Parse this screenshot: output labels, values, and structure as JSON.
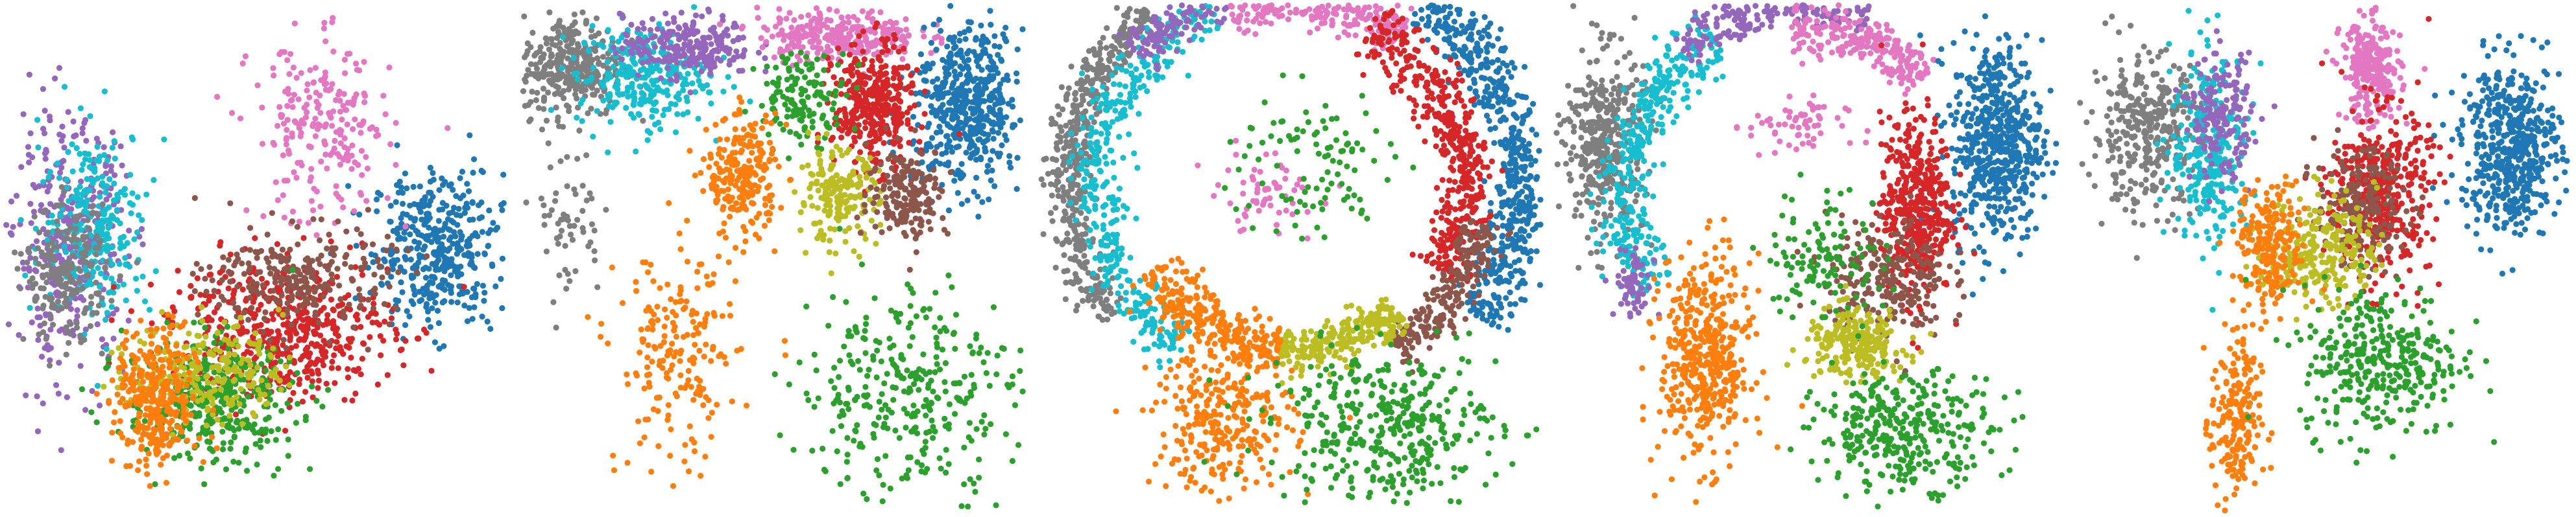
{
  "figure": {
    "background": "#ffffff"
  },
  "palette": {
    "blue": "#1f77b4",
    "orange": "#ff7f0e",
    "green": "#2ca02c",
    "red": "#d62728",
    "purple": "#9467bd",
    "brown": "#8c564b",
    "pink": "#e377c2",
    "gray": "#7f7f7f",
    "olive": "#bcbd22",
    "cyan": "#17becf"
  },
  "chart_data": [
    {
      "type": "scatter",
      "title": "",
      "xlabel": "",
      "ylabel": "",
      "axes_visible": false,
      "grid": false,
      "legend": "none",
      "xlim": [
        0,
        100
      ],
      "ylim": [
        0,
        100
      ],
      "clusters": [
        {
          "color": "blue",
          "regions": [
            {
              "kind": "blob",
              "cx": 86,
              "cy": 52,
              "rx": 13,
              "ry": 15,
              "n": 420
            }
          ]
        },
        {
          "color": "purple",
          "regions": [
            {
              "kind": "blob",
              "cx": 13,
              "cy": 52,
              "rx": 11,
              "ry": 24,
              "n": 380
            }
          ]
        },
        {
          "color": "cyan",
          "regions": [
            {
              "kind": "blob",
              "cx": 18,
              "cy": 57,
              "rx": 11,
              "ry": 19,
              "n": 260
            }
          ]
        },
        {
          "color": "gray",
          "regions": [
            {
              "kind": "blob",
              "cx": 12,
              "cy": 47,
              "rx": 8,
              "ry": 13,
              "n": 200
            }
          ]
        },
        {
          "color": "pink",
          "regions": [
            {
              "kind": "blob",
              "cx": 63,
              "cy": 75,
              "rx": 14,
              "ry": 18,
              "n": 230
            }
          ]
        },
        {
          "color": "red",
          "regions": [
            {
              "kind": "blob",
              "cx": 55,
              "cy": 36,
              "rx": 22,
              "ry": 14,
              "n": 560
            }
          ]
        },
        {
          "color": "brown",
          "regions": [
            {
              "kind": "blob",
              "cx": 59,
              "cy": 46,
              "rx": 18,
              "ry": 10,
              "n": 260
            }
          ]
        },
        {
          "color": "green",
          "regions": [
            {
              "kind": "blob",
              "cx": 41,
              "cy": 22,
              "rx": 17,
              "ry": 12,
              "n": 380
            }
          ]
        },
        {
          "color": "olive",
          "regions": [
            {
              "kind": "blob",
              "cx": 40,
              "cy": 28,
              "rx": 15,
              "ry": 10,
              "n": 240
            }
          ]
        },
        {
          "color": "orange",
          "regions": [
            {
              "kind": "blob",
              "cx": 30,
              "cy": 22,
              "rx": 8,
              "ry": 14,
              "n": 340
            }
          ]
        }
      ]
    },
    {
      "type": "scatter",
      "title": "",
      "xlabel": "",
      "ylabel": "",
      "axes_visible": false,
      "grid": false,
      "legend": "none",
      "xlim": [
        0,
        100
      ],
      "ylim": [
        0,
        100
      ],
      "clusters": [
        {
          "color": "gray",
          "regions": [
            {
              "kind": "blob",
              "cx": 10,
              "cy": 88,
              "rx": 10,
              "ry": 10,
              "n": 330
            },
            {
              "kind": "blob",
              "cx": 9,
              "cy": 58,
              "rx": 7,
              "ry": 16,
              "n": 60
            }
          ]
        },
        {
          "color": "cyan",
          "regions": [
            {
              "kind": "blob",
              "cx": 24,
              "cy": 86,
              "rx": 13,
              "ry": 10,
              "n": 290
            }
          ]
        },
        {
          "color": "purple",
          "regions": [
            {
              "kind": "blob",
              "cx": 33,
              "cy": 92,
              "rx": 13,
              "ry": 6,
              "n": 240
            }
          ]
        },
        {
          "color": "pink",
          "regions": [
            {
              "kind": "blob",
              "cx": 63,
              "cy": 94,
              "rx": 16,
              "ry": 5,
              "n": 280
            }
          ]
        },
        {
          "color": "blue",
          "regions": [
            {
              "kind": "blob",
              "cx": 89,
              "cy": 80,
              "rx": 11,
              "ry": 16,
              "n": 520
            }
          ]
        },
        {
          "color": "red",
          "regions": [
            {
              "kind": "blob",
              "cx": 70,
              "cy": 80,
              "rx": 8,
              "ry": 12,
              "n": 380
            }
          ]
        },
        {
          "color": "green",
          "regions": [
            {
              "kind": "blob",
              "cx": 56,
              "cy": 82,
              "rx": 9,
              "ry": 9,
              "n": 140
            },
            {
              "kind": "blob",
              "cx": 77,
              "cy": 24,
              "rx": 22,
              "ry": 21,
              "n": 330
            }
          ]
        },
        {
          "color": "olive",
          "regions": [
            {
              "kind": "blob",
              "cx": 63,
              "cy": 62,
              "rx": 8,
              "ry": 9,
              "n": 190
            }
          ]
        },
        {
          "color": "brown",
          "regions": [
            {
              "kind": "blob",
              "cx": 77,
              "cy": 63,
              "rx": 8,
              "ry": 9,
              "n": 190
            }
          ]
        },
        {
          "color": "orange",
          "regions": [
            {
              "kind": "blob",
              "cx": 44,
              "cy": 66,
              "rx": 7,
              "ry": 12,
              "n": 240
            },
            {
              "kind": "blob",
              "cx": 31,
              "cy": 30,
              "rx": 12,
              "ry": 22,
              "n": 200
            }
          ]
        }
      ]
    },
    {
      "type": "scatter",
      "title": "",
      "xlabel": "",
      "ylabel": "",
      "axes_visible": false,
      "grid": false,
      "legend": "none",
      "xlim": [
        0,
        100
      ],
      "ylim": [
        0,
        100
      ],
      "clusters": [
        {
          "color": "gray",
          "regions": [
            {
              "kind": "arc",
              "cx": 51,
              "cy": 64,
              "r": 45,
              "width": 5,
              "from": 130,
              "to": 215,
              "n": 480
            }
          ]
        },
        {
          "color": "cyan",
          "regions": [
            {
              "kind": "arc",
              "cx": 51,
              "cy": 64,
              "r": 39,
              "width": 6,
              "from": 115,
              "to": 235,
              "n": 420
            }
          ]
        },
        {
          "color": "purple",
          "regions": [
            {
              "kind": "arc",
              "cx": 51,
              "cy": 64,
              "r": 41,
              "width": 5,
              "from": 85,
              "to": 140,
              "n": 260
            }
          ]
        },
        {
          "color": "pink",
          "regions": [
            {
              "kind": "arc",
              "cx": 51,
              "cy": 64,
              "r": 37,
              "width": 5,
              "from": 55,
              "to": 110,
              "n": 300
            },
            {
              "kind": "blob",
              "cx": 45,
              "cy": 63,
              "rx": 11,
              "ry": 8,
              "n": 60
            }
          ]
        },
        {
          "color": "blue",
          "regions": [
            {
              "kind": "arc",
              "cx": 51,
              "cy": 64,
              "r": 45,
              "width": 6,
              "from": -35,
              "to": 55,
              "n": 600
            }
          ]
        },
        {
          "color": "red",
          "regions": [
            {
              "kind": "arc",
              "cx": 51,
              "cy": 64,
              "r": 34,
              "width": 6,
              "from": -30,
              "to": 65,
              "n": 460
            }
          ]
        },
        {
          "color": "brown",
          "regions": [
            {
              "kind": "arc",
              "cx": 51,
              "cy": 64,
              "r": 38,
              "width": 5,
              "from": -58,
              "to": -10,
              "n": 230
            }
          ]
        },
        {
          "color": "olive",
          "regions": [
            {
              "kind": "arc",
              "cx": 51,
              "cy": 64,
              "r": 32,
              "width": 5,
              "from": -95,
              "to": -50,
              "n": 260
            }
          ]
        },
        {
          "color": "orange",
          "regions": [
            {
              "kind": "arc",
              "cx": 51,
              "cy": 64,
              "r": 32,
              "width": 6,
              "from": -150,
              "to": -95,
              "n": 280
            },
            {
              "kind": "blob",
              "cx": 37,
              "cy": 18,
              "rx": 14,
              "ry": 14,
              "n": 280
            }
          ]
        },
        {
          "color": "green",
          "regions": [
            {
              "kind": "blob",
              "cx": 69,
              "cy": 17,
              "rx": 23,
              "ry": 15,
              "n": 380
            },
            {
              "kind": "blob",
              "cx": 54,
              "cy": 68,
              "rx": 16,
              "ry": 16,
              "n": 100
            }
          ]
        }
      ]
    },
    {
      "type": "scatter",
      "title": "",
      "xlabel": "",
      "ylabel": "",
      "axes_visible": false,
      "grid": false,
      "legend": "none",
      "xlim": [
        0,
        100
      ],
      "ylim": [
        0,
        100
      ],
      "clusters": [
        {
          "color": "gray",
          "regions": [
            {
              "kind": "blob",
              "cx": 10,
              "cy": 73,
              "rx": 8,
              "ry": 18,
              "n": 400
            }
          ]
        },
        {
          "color": "cyan",
          "regions": [
            {
              "kind": "arc",
              "cx": 50,
              "cy": 62,
              "r": 36,
              "width": 6,
              "from": 120,
              "to": 210,
              "n": 380
            }
          ]
        },
        {
          "color": "purple",
          "regions": [
            {
              "kind": "arc",
              "cx": 50,
              "cy": 62,
              "r": 38,
              "width": 5,
              "from": 70,
              "to": 130,
              "n": 240
            },
            {
              "kind": "blob",
              "cx": 16,
              "cy": 45,
              "rx": 4,
              "ry": 7,
              "n": 60
            }
          ]
        },
        {
          "color": "pink",
          "regions": [
            {
              "kind": "arc",
              "cx": 50,
              "cy": 62,
              "r": 33,
              "width": 5,
              "from": 45,
              "to": 95,
              "n": 240
            },
            {
              "kind": "blob",
              "cx": 48,
              "cy": 76,
              "rx": 10,
              "ry": 6,
              "n": 60
            }
          ]
        },
        {
          "color": "blue",
          "regions": [
            {
              "kind": "blob",
              "cx": 88,
              "cy": 73,
              "rx": 9,
              "ry": 20,
              "n": 560
            }
          ]
        },
        {
          "color": "red",
          "regions": [
            {
              "kind": "blob",
              "cx": 72,
              "cy": 60,
              "rx": 7,
              "ry": 18,
              "n": 460
            }
          ]
        },
        {
          "color": "brown",
          "regions": [
            {
              "kind": "blob",
              "cx": 66,
              "cy": 46,
              "rx": 12,
              "ry": 12,
              "n": 260
            }
          ]
        },
        {
          "color": "olive",
          "regions": [
            {
              "kind": "blob",
              "cx": 60,
              "cy": 33,
              "rx": 10,
              "ry": 7,
              "n": 240
            }
          ]
        },
        {
          "color": "orange",
          "regions": [
            {
              "kind": "blob",
              "cx": 30,
              "cy": 30,
              "rx": 9,
              "ry": 20,
              "n": 450
            }
          ]
        },
        {
          "color": "green",
          "regions": [
            {
              "kind": "blob",
              "cx": 70,
              "cy": 16,
              "rx": 18,
              "ry": 11,
              "n": 330
            },
            {
              "kind": "blob",
              "cx": 54,
              "cy": 50,
              "rx": 12,
              "ry": 14,
              "n": 120
            }
          ]
        }
      ]
    },
    {
      "type": "scatter",
      "title": "",
      "xlabel": "",
      "ylabel": "",
      "axes_visible": false,
      "grid": false,
      "legend": "none",
      "xlim": [
        0,
        100
      ],
      "ylim": [
        0,
        100
      ],
      "clusters": [
        {
          "color": "gray",
          "regions": [
            {
              "kind": "blob",
              "cx": 15,
              "cy": 75,
              "rx": 11,
              "ry": 15,
              "n": 340
            }
          ]
        },
        {
          "color": "cyan",
          "regions": [
            {
              "kind": "blob",
              "cx": 28,
              "cy": 72,
              "rx": 8,
              "ry": 19,
              "n": 300
            }
          ]
        },
        {
          "color": "purple",
          "regions": [
            {
              "kind": "blob",
              "cx": 30,
              "cy": 78,
              "rx": 6,
              "ry": 12,
              "n": 180
            }
          ]
        },
        {
          "color": "pink",
          "regions": [
            {
              "kind": "blob",
              "cx": 60,
              "cy": 87,
              "rx": 6,
              "ry": 10,
              "n": 260
            }
          ]
        },
        {
          "color": "blue",
          "regions": [
            {
              "kind": "blob",
              "cx": 88,
              "cy": 72,
              "rx": 10,
              "ry": 17,
              "n": 520
            }
          ]
        },
        {
          "color": "red",
          "regions": [
            {
              "kind": "blob",
              "cx": 62,
              "cy": 63,
              "rx": 10,
              "ry": 16,
              "n": 420
            }
          ]
        },
        {
          "color": "brown",
          "regions": [
            {
              "kind": "blob",
              "cx": 58,
              "cy": 60,
              "rx": 9,
              "ry": 12,
              "n": 200
            }
          ]
        },
        {
          "color": "olive",
          "regions": [
            {
              "kind": "blob",
              "cx": 50,
              "cy": 52,
              "rx": 11,
              "ry": 11,
              "n": 260
            }
          ]
        },
        {
          "color": "orange",
          "regions": [
            {
              "kind": "blob",
              "cx": 40,
              "cy": 52,
              "rx": 7,
              "ry": 12,
              "n": 230
            },
            {
              "kind": "blob",
              "cx": 33,
              "cy": 18,
              "rx": 5,
              "ry": 18,
              "n": 200
            }
          ]
        },
        {
          "color": "green",
          "regions": [
            {
              "kind": "blob",
              "cx": 62,
              "cy": 30,
              "rx": 16,
              "ry": 15,
              "n": 340
            }
          ]
        }
      ]
    }
  ]
}
